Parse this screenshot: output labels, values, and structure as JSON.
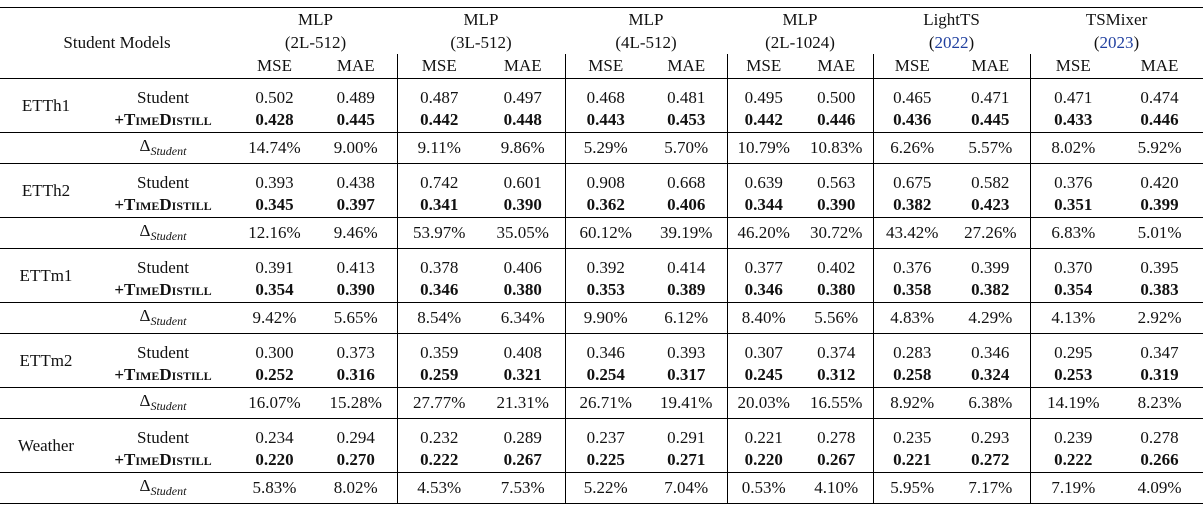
{
  "header": {
    "title": "Student Models",
    "groups": [
      {
        "name": "MLP",
        "sub": [
          "(2L-512)"
        ]
      },
      {
        "name": "MLP",
        "sub": [
          "(3L-512)"
        ]
      },
      {
        "name": "MLP",
        "sub": [
          "(4L-512)"
        ]
      },
      {
        "name": "MLP",
        "sub": [
          "(2L-1024)"
        ]
      },
      {
        "name": "LightTS",
        "sub": [
          "(",
          "2022",
          ")"
        ]
      },
      {
        "name": "TSMixer",
        "sub": [
          "(",
          "2023",
          ")"
        ]
      }
    ],
    "metrics": [
      "MSE",
      "MAE"
    ]
  },
  "row_labels": {
    "student": "Student",
    "distill": "+TimeDistill",
    "delta_symbol": "Δ",
    "delta_sub": "Student"
  },
  "datasets": [
    {
      "name": "ETTh1",
      "student": [
        "0.502",
        "0.489",
        "0.487",
        "0.497",
        "0.468",
        "0.481",
        "0.495",
        "0.500",
        "0.465",
        "0.471",
        "0.471",
        "0.474"
      ],
      "distill": [
        "0.428",
        "0.445",
        "0.442",
        "0.448",
        "0.443",
        "0.453",
        "0.442",
        "0.446",
        "0.436",
        "0.445",
        "0.433",
        "0.446"
      ],
      "delta": [
        "14.74%",
        "9.00%",
        "9.11%",
        "9.86%",
        "5.29%",
        "5.70%",
        "10.79%",
        "10.83%",
        "6.26%",
        "5.57%",
        "8.02%",
        "5.92%"
      ]
    },
    {
      "name": "ETTh2",
      "student": [
        "0.393",
        "0.438",
        "0.742",
        "0.601",
        "0.908",
        "0.668",
        "0.639",
        "0.563",
        "0.675",
        "0.582",
        "0.376",
        "0.420"
      ],
      "distill": [
        "0.345",
        "0.397",
        "0.341",
        "0.390",
        "0.362",
        "0.406",
        "0.344",
        "0.390",
        "0.382",
        "0.423",
        "0.351",
        "0.399"
      ],
      "delta": [
        "12.16%",
        "9.46%",
        "53.97%",
        "35.05%",
        "60.12%",
        "39.19%",
        "46.20%",
        "30.72%",
        "43.42%",
        "27.26%",
        "6.83%",
        "5.01%"
      ]
    },
    {
      "name": "ETTm1",
      "student": [
        "0.391",
        "0.413",
        "0.378",
        "0.406",
        "0.392",
        "0.414",
        "0.377",
        "0.402",
        "0.376",
        "0.399",
        "0.370",
        "0.395"
      ],
      "distill": [
        "0.354",
        "0.390",
        "0.346",
        "0.380",
        "0.353",
        "0.389",
        "0.346",
        "0.380",
        "0.358",
        "0.382",
        "0.354",
        "0.383"
      ],
      "delta": [
        "9.42%",
        "5.65%",
        "8.54%",
        "6.34%",
        "9.90%",
        "6.12%",
        "8.40%",
        "5.56%",
        "4.83%",
        "4.29%",
        "4.13%",
        "2.92%"
      ]
    },
    {
      "name": "ETTm2",
      "student": [
        "0.300",
        "0.373",
        "0.359",
        "0.408",
        "0.346",
        "0.393",
        "0.307",
        "0.374",
        "0.283",
        "0.346",
        "0.295",
        "0.347"
      ],
      "distill": [
        "0.252",
        "0.316",
        "0.259",
        "0.321",
        "0.254",
        "0.317",
        "0.245",
        "0.312",
        "0.258",
        "0.324",
        "0.253",
        "0.319"
      ],
      "delta": [
        "16.07%",
        "15.28%",
        "27.77%",
        "21.31%",
        "26.71%",
        "19.41%",
        "20.03%",
        "16.55%",
        "8.92%",
        "6.38%",
        "14.19%",
        "8.23%"
      ]
    },
    {
      "name": "Weather",
      "student": [
        "0.234",
        "0.294",
        "0.232",
        "0.289",
        "0.237",
        "0.291",
        "0.221",
        "0.278",
        "0.235",
        "0.293",
        "0.239",
        "0.278"
      ],
      "distill": [
        "0.220",
        "0.270",
        "0.222",
        "0.267",
        "0.225",
        "0.271",
        "0.220",
        "0.267",
        "0.221",
        "0.272",
        "0.222",
        "0.266"
      ],
      "delta": [
        "5.83%",
        "8.02%",
        "4.53%",
        "7.53%",
        "5.22%",
        "7.04%",
        "0.53%",
        "4.10%",
        "5.95%",
        "7.17%",
        "7.19%",
        "4.09%"
      ]
    }
  ]
}
